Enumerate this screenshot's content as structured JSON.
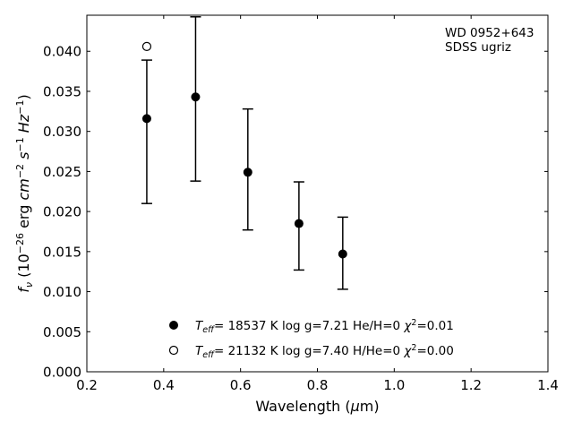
{
  "chart_data": {
    "type": "scatter",
    "xlabel": "Wavelength (μm)",
    "ylabel": "f_ν (10^-26 erg cm^-2 s^-1 Hz^-1)",
    "xlim": [
      0.2,
      1.4
    ],
    "ylim": [
      0.0,
      0.0445
    ],
    "xticks": [
      "0.2",
      "0.4",
      "0.6",
      "0.8",
      "1.0",
      "1.2",
      "1.4"
    ],
    "yticks": [
      "0.000",
      "0.005",
      "0.010",
      "0.015",
      "0.020",
      "0.025",
      "0.030",
      "0.035",
      "0.040"
    ],
    "grid": false,
    "annotation": [
      "WD 0952+643",
      "SDSS ugriz"
    ],
    "series": [
      {
        "name": "T_eff= 18537 K  log g=7.21  He/H=0  χ²=0.01",
        "marker": "filled-circle",
        "x": [
          0.356,
          0.483,
          0.619,
          0.752,
          0.866
        ],
        "y": [
          0.0316,
          0.0343,
          0.0249,
          0.0185,
          0.0147
        ],
        "yerr_low": [
          0.021,
          0.0238,
          0.0177,
          0.0127,
          0.0103
        ],
        "yerr_high": [
          0.0389,
          0.0443,
          0.0328,
          0.0237,
          0.0193
        ]
      },
      {
        "name": "T_eff= 21132 K  log g=7.40  H/He=0  χ²=0.00",
        "marker": "open-circle",
        "x": [
          0.356
        ],
        "y": [
          0.0406
        ]
      }
    ],
    "legend": {
      "location": "lower-center",
      "entries": [
        {
          "teff": "18537 K",
          "rest": "log g=7.21  He/H=0",
          "chi2": "0.01"
        },
        {
          "teff": "21132 K",
          "rest": "log g=7.40  H/He=0",
          "chi2": "0.00"
        }
      ]
    }
  }
}
